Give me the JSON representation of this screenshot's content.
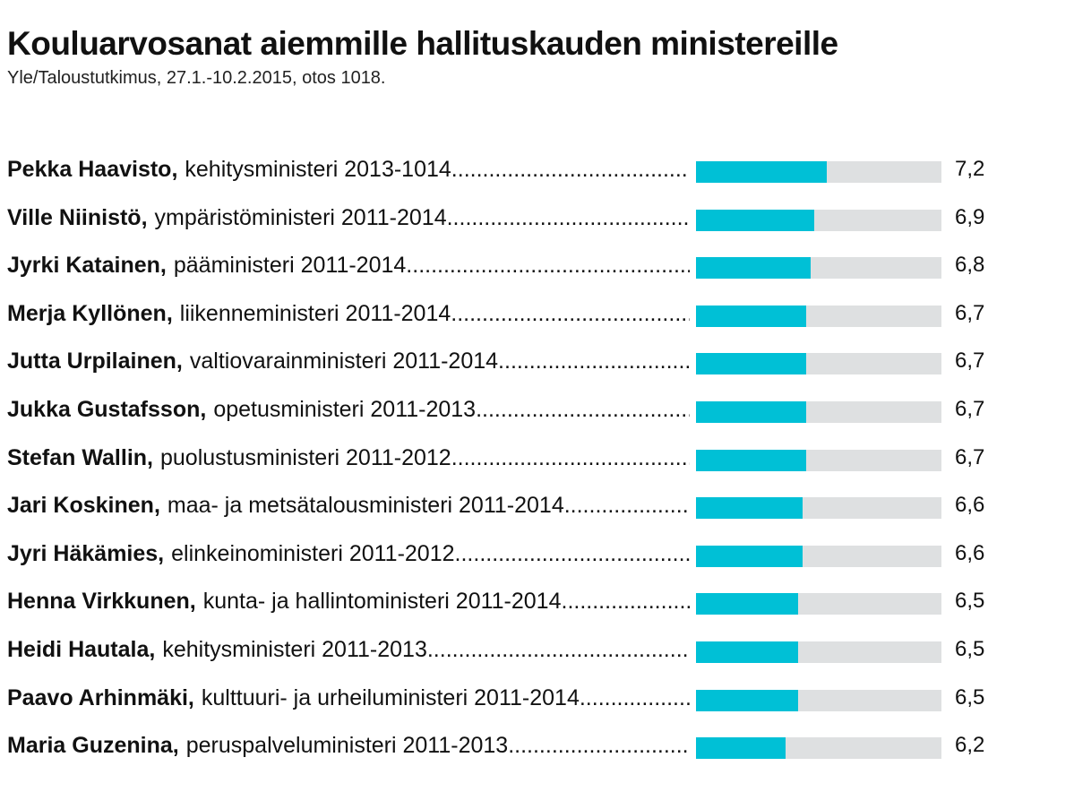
{
  "chart_data": {
    "type": "bar",
    "orientation": "horizontal",
    "title": "Kouluarvosanat aiemmille hallituskauden ministereille",
    "subtitle": "Yle/Taloustutkimus, 27.1.-10.2.2015, otos 1018.",
    "xlim": [
      4,
      10
    ],
    "colors": {
      "bar": "#00c0d6",
      "track": "#dee0e1"
    },
    "rows": [
      {
        "name": "Pekka Haavisto,",
        "role": "kehitysministeri 2013-1014",
        "value": 7.2,
        "value_label": "7,2"
      },
      {
        "name": "Ville Niinistö,",
        "role": "ympäristöministeri 2011-2014",
        "value": 6.9,
        "value_label": "6,9"
      },
      {
        "name": "Jyrki Katainen,",
        "role": "pääministeri 2011-2014",
        "value": 6.8,
        "value_label": "6,8"
      },
      {
        "name": "Merja Kyllönen,",
        "role": "liikenneministeri 2011-2014",
        "value": 6.7,
        "value_label": "6,7"
      },
      {
        "name": "Jutta Urpilainen,",
        "role": "valtiovarainministeri 2011-2014",
        "value": 6.7,
        "value_label": "6,7"
      },
      {
        "name": "Jukka Gustafsson,",
        "role": "opetusministeri 2011-2013",
        "value": 6.7,
        "value_label": "6,7"
      },
      {
        "name": "Stefan Wallin,",
        "role": "puolustusministeri 2011-2012",
        "value": 6.7,
        "value_label": "6,7"
      },
      {
        "name": "Jari Koskinen,",
        "role": "maa- ja metsätalousministeri 2011-2014",
        "value": 6.6,
        "value_label": "6,6"
      },
      {
        "name": "Jyri Häkämies,",
        "role": "elinkeinoministeri 2011-2012",
        "value": 6.6,
        "value_label": "6,6"
      },
      {
        "name": "Henna Virkkunen,",
        "role": "kunta- ja hallintoministeri 2011-2014",
        "value": 6.5,
        "value_label": "6,5"
      },
      {
        "name": "Heidi Hautala,",
        "role": "kehitysministeri 2011-2013",
        "value": 6.5,
        "value_label": "6,5"
      },
      {
        "name": "Paavo Arhinmäki,",
        "role": "kulttuuri- ja urheiluministeri 2011-2014",
        "value": 6.5,
        "value_label": "6,5"
      },
      {
        "name": "Maria Guzenina,",
        "role": "peruspalveluministeri 2011-2013",
        "value": 6.2,
        "value_label": "6,2"
      }
    ]
  }
}
